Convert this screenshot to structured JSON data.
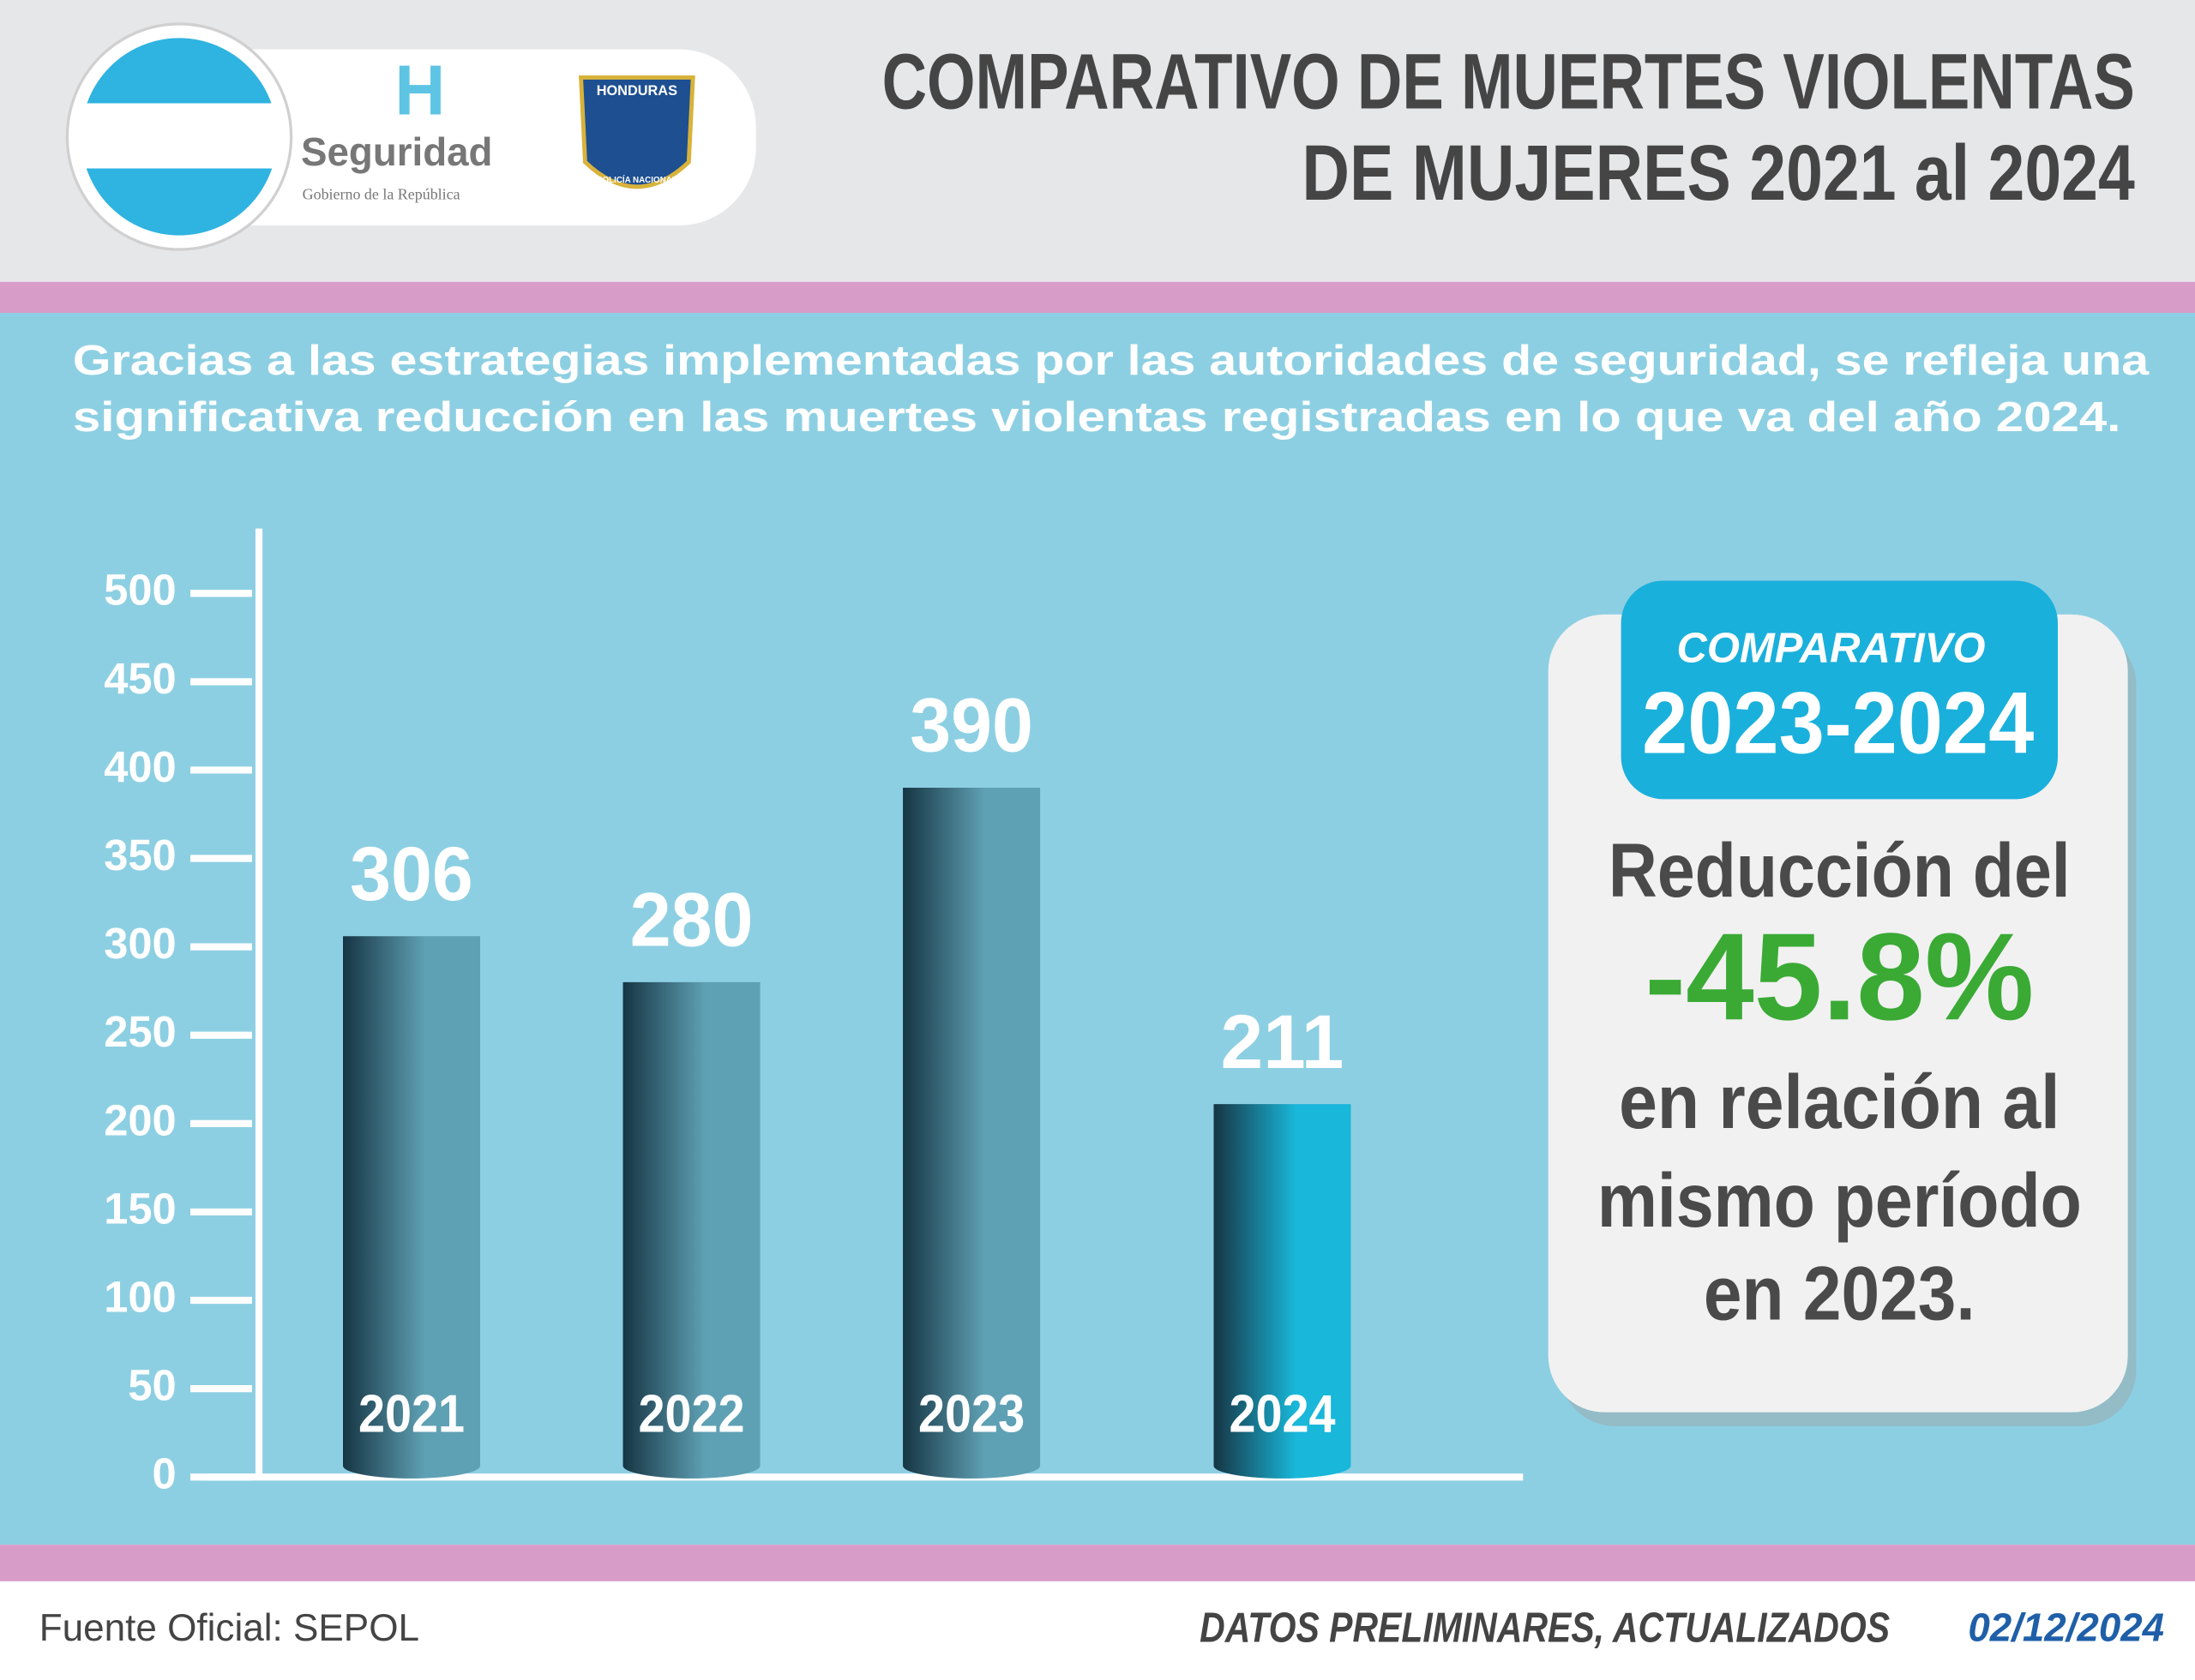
{
  "header": {
    "logo_title": "Seguridad",
    "logo_subtitle": "Gobierno de la República",
    "badge_top": "HONDURAS",
    "badge_bottom": "POLICÍA NACIONAL"
  },
  "chart_data": {
    "type": "bar",
    "title": [
      "COMPARATIVO DE MUERTES VIOLENTAS",
      "DE MUJERES 2021 al 2024"
    ],
    "subtitle": [
      "Gracias a las estrategias implementadas por las autoridades de seguridad, se refleja una",
      "significativa reducción en las muertes violentas registradas en lo que va del año 2024."
    ],
    "categories": [
      "2021",
      "2022",
      "2023",
      "2024"
    ],
    "values": [
      306,
      280,
      390,
      211
    ],
    "colors": [
      "#5fa1b4",
      "#5fa1b4",
      "#5fa1b4",
      "#19b7d9"
    ],
    "ylim": [
      0,
      500
    ],
    "yticks": [
      0,
      50,
      100,
      150,
      200,
      250,
      300,
      350,
      400,
      450,
      500
    ]
  },
  "callout": {
    "label": "COMPARATIVO",
    "period": "2023-2024",
    "lines": [
      "Reducción del",
      "-45.8%",
      "en relación al",
      "mismo período",
      "en 2023."
    ]
  },
  "footer": {
    "source": "Fuente Oficial: SEPOL",
    "note": "DATOS PRELIMINARES, ACTUALIZADOS",
    "date": "02/12/2024"
  }
}
